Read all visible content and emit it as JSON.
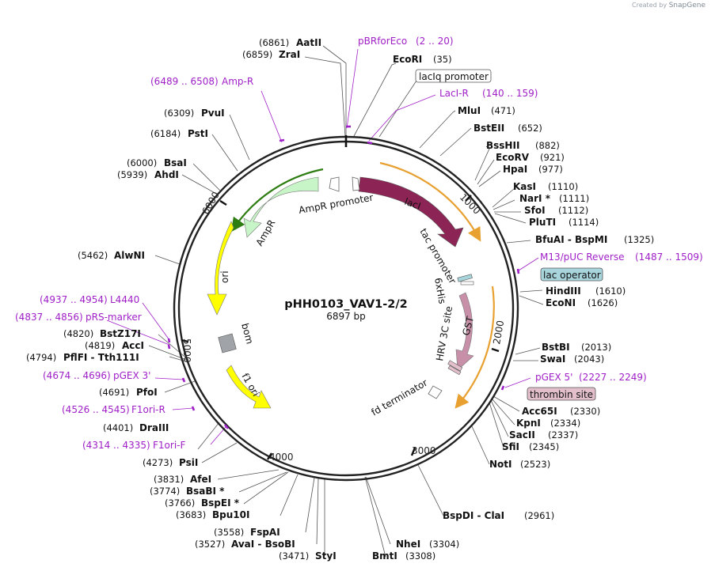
{
  "credit": {
    "prefix": "Created by",
    "brand": "SnapGene"
  },
  "plasmid": {
    "name": "pHH0103_VAV1-2/2",
    "length": "6897 bp"
  },
  "ticks": [
    "1000",
    "2000",
    "3000",
    "4000",
    "5000",
    "6000"
  ],
  "enzymes": [
    {
      "name": "AatII",
      "pos": "(6861)",
      "side": "L"
    },
    {
      "name": "ZraI",
      "pos": "(6859)",
      "side": "L"
    },
    {
      "name": "EcoRI",
      "pos": "(35)",
      "side": "R"
    },
    {
      "name": "MluI",
      "pos": "(471)",
      "side": "R"
    },
    {
      "name": "BstEII",
      "pos": "(652)",
      "side": "R"
    },
    {
      "name": "BssHII",
      "pos": "(882)",
      "side": "R"
    },
    {
      "name": "EcoRV",
      "pos": "(921)",
      "side": "R"
    },
    {
      "name": "HpaI",
      "pos": "(977)",
      "side": "R"
    },
    {
      "name": "KasI",
      "pos": "(1110)",
      "side": "R"
    },
    {
      "name": "NarI *",
      "pos": "(1111)",
      "side": "R"
    },
    {
      "name": "SfoI",
      "pos": "(1112)",
      "side": "R"
    },
    {
      "name": "PluTI",
      "pos": "(1114)",
      "side": "R"
    },
    {
      "name": "BfuAI - BspMI",
      "pos": "(1325)",
      "side": "R"
    },
    {
      "name": "HindIII",
      "pos": "(1610)",
      "side": "R"
    },
    {
      "name": "EcoNI",
      "pos": "(1626)",
      "side": "R"
    },
    {
      "name": "BstBI",
      "pos": "(2013)",
      "side": "R"
    },
    {
      "name": "SwaI",
      "pos": "(2043)",
      "side": "R"
    },
    {
      "name": "Acc65I",
      "pos": "(2330)",
      "side": "R"
    },
    {
      "name": "KpnI",
      "pos": "(2334)",
      "side": "R"
    },
    {
      "name": "SacII",
      "pos": "(2337)",
      "side": "R"
    },
    {
      "name": "SfiI",
      "pos": "(2345)",
      "side": "R"
    },
    {
      "name": "NotI",
      "pos": "(2523)",
      "side": "R"
    },
    {
      "name": "BspDI - ClaI",
      "pos": "(2961)",
      "side": "R"
    },
    {
      "name": "NheI",
      "pos": "(3304)",
      "side": "R"
    },
    {
      "name": "BmtI",
      "pos": "(3308)",
      "side": "R"
    },
    {
      "name": "StyI",
      "pos": "(3471)",
      "side": "L"
    },
    {
      "name": "AvaI - BsoBI",
      "pos": "(3527)",
      "side": "L"
    },
    {
      "name": "FspAI",
      "pos": "(3558)",
      "side": "L"
    },
    {
      "name": "Bpu10I",
      "pos": "(3683)",
      "side": "L"
    },
    {
      "name": "BspEI *",
      "pos": "(3766)",
      "side": "L"
    },
    {
      "name": "BsaBI *",
      "pos": "(3774)",
      "side": "L"
    },
    {
      "name": "AfeI",
      "pos": "(3831)",
      "side": "L"
    },
    {
      "name": "PsiI",
      "pos": "(4273)",
      "side": "L"
    },
    {
      "name": "DraIII",
      "pos": "(4401)",
      "side": "L"
    },
    {
      "name": "PfoI",
      "pos": "(4691)",
      "side": "L"
    },
    {
      "name": "PflFI - Tth111I",
      "pos": "(4794)",
      "side": "L"
    },
    {
      "name": "AccI",
      "pos": "(4819)",
      "side": "L"
    },
    {
      "name": "BstZ17I",
      "pos": "(4820)",
      "side": "L"
    },
    {
      "name": "AlwNI",
      "pos": "(5462)",
      "side": "L"
    },
    {
      "name": "AhdI",
      "pos": "(5939)",
      "side": "L"
    },
    {
      "name": "BsaI",
      "pos": "(6000)",
      "side": "L"
    },
    {
      "name": "PstI",
      "pos": "(6184)",
      "side": "L"
    },
    {
      "name": "PvuI",
      "pos": "(6309)",
      "side": "L"
    }
  ],
  "primers": [
    {
      "name": "pBRforEco",
      "range": "(2 .. 20)",
      "side": "R"
    },
    {
      "name": "LacI-R",
      "range": "(140 .. 159)",
      "side": "R"
    },
    {
      "name": "M13/pUC Reverse",
      "range": "(1487 .. 1509)",
      "side": "R"
    },
    {
      "name": "pGEX 5'",
      "range": "(2227 .. 2249)",
      "side": "R"
    },
    {
      "name": "Amp-R",
      "range": "(6489 .. 6508)",
      "side": "L"
    },
    {
      "name": "L4440",
      "range": "(4937 .. 4954)",
      "side": "L"
    },
    {
      "name": "pRS-marker",
      "range": "(4837 .. 4856)",
      "side": "L"
    },
    {
      "name": "pGEX 3'",
      "range": "(4674 .. 4696)",
      "side": "L"
    },
    {
      "name": "F1ori-R",
      "range": "(4526 .. 4545)",
      "side": "L"
    },
    {
      "name": "F1ori-F",
      "range": "(4314 .. 4335)",
      "side": "L"
    }
  ],
  "boxed_features": [
    {
      "name": "lacIq promoter",
      "fill": "#ffffff"
    },
    {
      "name": "lac operator",
      "fill": "#a8d4dc"
    },
    {
      "name": "thrombin site",
      "fill": "#e2bfcb"
    }
  ],
  "features": [
    {
      "name": "lacI",
      "color": "#8c2555"
    },
    {
      "name": "AmpR",
      "color": "#c8f5c8"
    },
    {
      "name": "ori",
      "color": "#ffff00"
    },
    {
      "name": "f1 ori",
      "color": "#ffff00"
    },
    {
      "name": "GST",
      "color": "#c890a8"
    },
    {
      "name": "AmpR promoter",
      "color": "#ffffff"
    },
    {
      "name": "tac promoter",
      "color": "#ffffff"
    },
    {
      "name": "6xHis",
      "color": "#ffffff"
    },
    {
      "name": "HRV 3C site",
      "color": "#ffffff"
    },
    {
      "name": "bom",
      "color": "#a0a4a8"
    },
    {
      "name": "fd terminator",
      "color": "#ffffff"
    }
  ],
  "colors": {
    "backbone": "#222222",
    "primer": "#a020c8",
    "orf_orange": "#e8a030",
    "orf_green": "#2e7d12"
  }
}
